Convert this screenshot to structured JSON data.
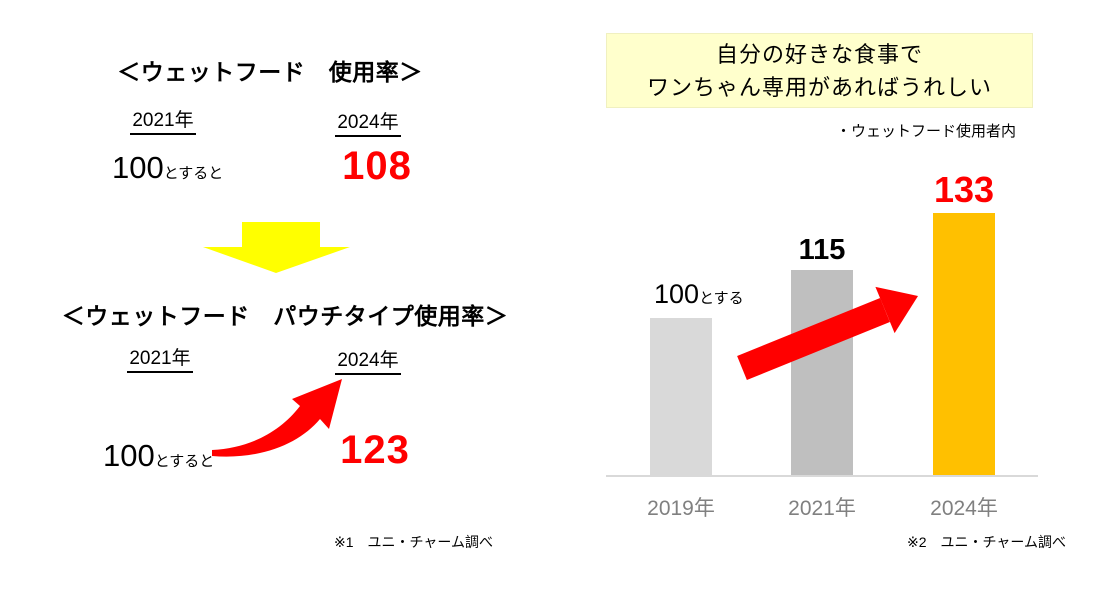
{
  "colors": {
    "accent_red": "#FF0000",
    "highlight_yellow": "#FFFF00",
    "headline_box_bg": "#FFFFCC",
    "bar_light_gray": "#D9D9D9",
    "bar_gray": "#BFBFBF",
    "bar_orange": "#FFC000",
    "axis_gray": "#D9D9D9",
    "category_label_gray": "#808080"
  },
  "left": {
    "section1": {
      "title": "＜ウェットフード　使用率＞",
      "year_from": "2021年",
      "year_to": "2024年",
      "base_big": "100",
      "base_small": "とすると",
      "result": "108"
    },
    "section2": {
      "title": "＜ウェットフード　パウチタイプ使用率＞",
      "year_from": "2021年",
      "year_to": "2024年",
      "base_big": "100",
      "base_small": "とすると",
      "result": "123"
    },
    "footnote": "※1　ユニ・チャーム調べ"
  },
  "right": {
    "headline_line1": "自分の好きな食事で",
    "headline_line2": "ワンちゃん専用があればうれしい",
    "note": "・ウェットフード使用者内",
    "footnote": "※2　ユニ・チャーム調べ"
  },
  "chart_data": {
    "type": "bar",
    "title": "自分の好きな食事でワンちゃん専用がればうれしい",
    "subtitle": "・ウェットフード使用者内",
    "categories": [
      "2019年",
      "2021年",
      "2024年"
    ],
    "values": [
      100,
      115,
      133
    ],
    "bar_labels": [
      {
        "big": "100",
        "small": "とする",
        "color": "#000000",
        "bold": false
      },
      {
        "big": "115",
        "small": "",
        "color": "#000000",
        "bold": true
      },
      {
        "big": "133",
        "small": "",
        "color": "#FF0000",
        "bold": true
      }
    ],
    "bar_colors": [
      "#D9D9D9",
      "#BFBFBF",
      "#FFC000"
    ],
    "value_axis_shown": false,
    "gridlines": false,
    "legend": "none",
    "annotation": "red upward trend arrow from 2019 bar to 2024 bar"
  }
}
